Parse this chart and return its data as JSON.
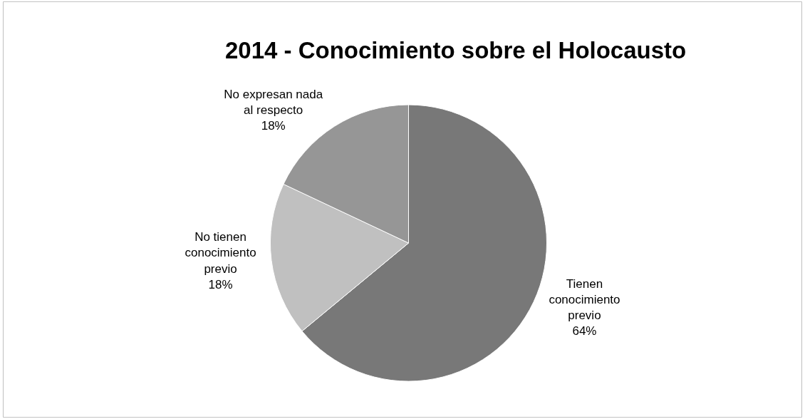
{
  "chart_data": {
    "type": "pie",
    "title": "2014 - Conocimiento sobre el Holocausto",
    "categories": [
      "Tienen\nconocimiento\nprevio",
      "No tienen\nconocimiento\nprevio",
      "No expresan nada\nal respecto"
    ],
    "values": [
      64,
      18,
      18
    ],
    "value_labels": [
      "64%",
      "18%",
      "18%"
    ],
    "colors": [
      "#787878",
      "#c0c0c0",
      "#969696"
    ],
    "legend": false
  }
}
